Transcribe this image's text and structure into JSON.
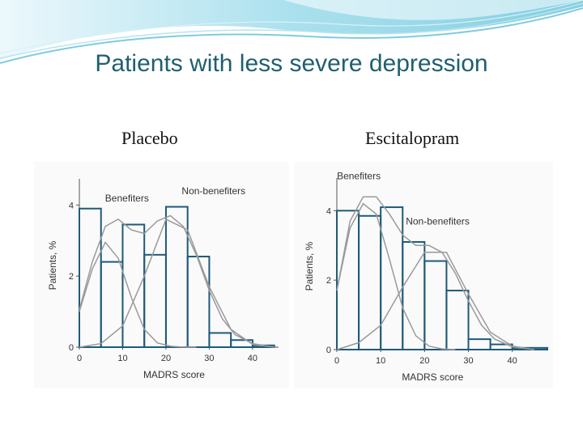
{
  "slide": {
    "title": "Patients with less severe depression"
  },
  "panels": {
    "placebo_title": "Placebo",
    "escitalopram_title": "Escitalopram"
  },
  "colors": {
    "bar_stroke": "#1e5a7a",
    "curve": "#9a9a9a",
    "title": "#1f5f6f",
    "banner": "#6cc7dc"
  },
  "chart_data": [
    {
      "type": "bar",
      "bin_edges": [
        0,
        5,
        10,
        15,
        20,
        25,
        30,
        35,
        40,
        45
      ],
      "values": [
        3.9,
        2.4,
        3.45,
        2.6,
        3.95,
        2.55,
        0.4,
        0.2,
        0.05
      ],
      "xlabel": "MADRS score",
      "ylabel": "Patients, %",
      "xticks": [
        0,
        10,
        20,
        30,
        40
      ],
      "yticks": [
        0,
        2,
        4
      ],
      "xlim": [
        0,
        46
      ],
      "ylim": [
        0,
        4.6
      ],
      "annotations": [
        {
          "text": "Benefiters",
          "x": 11,
          "y": 4.1
        },
        {
          "text": "Non-benefiters",
          "x": 31,
          "y": 4.3
        }
      ],
      "curves": [
        {
          "x": [
            0,
            3,
            6,
            9,
            12,
            15,
            18,
            21,
            24,
            27
          ],
          "y": [
            1.0,
            2.2,
            2.95,
            2.5,
            1.4,
            0.5,
            0.12,
            0.03,
            0.0,
            0.0
          ]
        },
        {
          "x": [
            0,
            5,
            10,
            15,
            20,
            25,
            30,
            35,
            40,
            45
          ],
          "y": [
            0.0,
            0.1,
            0.6,
            2.0,
            3.6,
            3.3,
            1.7,
            0.5,
            0.08,
            0.0
          ]
        },
        {
          "x": [
            0,
            3,
            6,
            9,
            12,
            15,
            18,
            21,
            24,
            27,
            30,
            33,
            36,
            40,
            45
          ],
          "y": [
            1.05,
            2.4,
            3.4,
            3.6,
            3.3,
            3.2,
            3.55,
            3.7,
            3.4,
            2.6,
            1.6,
            0.8,
            0.35,
            0.1,
            0.0
          ]
        }
      ]
    },
    {
      "type": "bar",
      "bin_edges": [
        0,
        5,
        10,
        15,
        20,
        25,
        30,
        35,
        40,
        48
      ],
      "values": [
        4.0,
        3.85,
        4.1,
        3.1,
        2.55,
        1.7,
        0.3,
        0.15,
        0.05
      ],
      "xlabel": "MADRS score",
      "ylabel": "Patients, %",
      "xticks": [
        0,
        10,
        20,
        30,
        40
      ],
      "yticks": [
        0,
        2,
        4
      ],
      "xlim": [
        0,
        48
      ],
      "ylim": [
        0,
        4.8
      ],
      "annotations": [
        {
          "text": "Benefiters",
          "x": 5,
          "y": 4.9
        },
        {
          "text": "Non-benefiters",
          "x": 23,
          "y": 3.6
        }
      ],
      "curves": [
        {
          "x": [
            0,
            3,
            6,
            9,
            12,
            15,
            18,
            21,
            24,
            27
          ],
          "y": [
            1.7,
            3.5,
            4.2,
            3.9,
            2.6,
            1.2,
            0.4,
            0.1,
            0.02,
            0.0
          ]
        },
        {
          "x": [
            0,
            5,
            10,
            15,
            20,
            25,
            30,
            35,
            40,
            45
          ],
          "y": [
            0.0,
            0.2,
            0.7,
            1.8,
            2.8,
            2.8,
            1.6,
            0.5,
            0.1,
            0.0
          ]
        },
        {
          "x": [
            0,
            3,
            6,
            9,
            12,
            15,
            18,
            21,
            24,
            27,
            30,
            33,
            36,
            40,
            45
          ],
          "y": [
            1.7,
            3.7,
            4.4,
            4.4,
            3.9,
            3.3,
            3.0,
            3.0,
            2.8,
            2.2,
            1.4,
            0.7,
            0.3,
            0.08,
            0.0
          ]
        }
      ]
    }
  ]
}
